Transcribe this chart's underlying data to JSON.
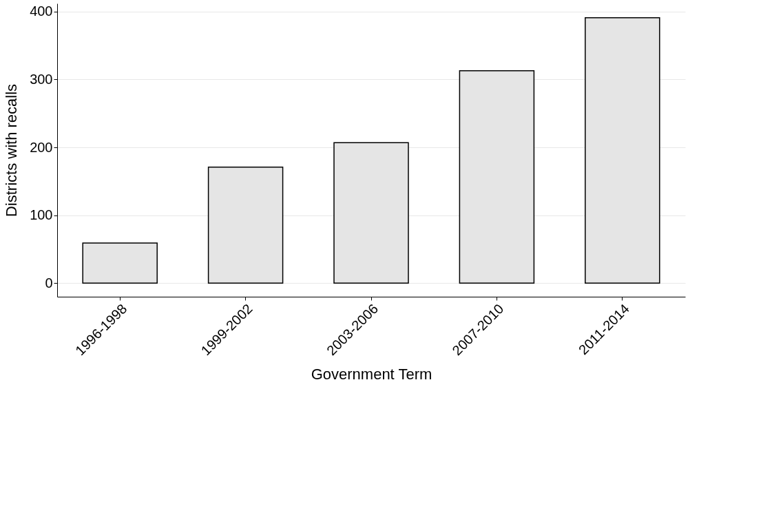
{
  "chart_data": {
    "type": "bar",
    "xlabel": "Government Term",
    "ylabel": "Districts with recalls",
    "categories": [
      "1996-1998",
      "1999-2002",
      "2003-2006",
      "2007-2010",
      "2011-2014"
    ],
    "values": [
      59,
      171,
      207,
      313,
      391
    ],
    "color": "#e5e5e5",
    "ylim": [
      -20,
      412
    ],
    "yticks": [
      0,
      100,
      200,
      300,
      400
    ],
    "grid": "y"
  }
}
